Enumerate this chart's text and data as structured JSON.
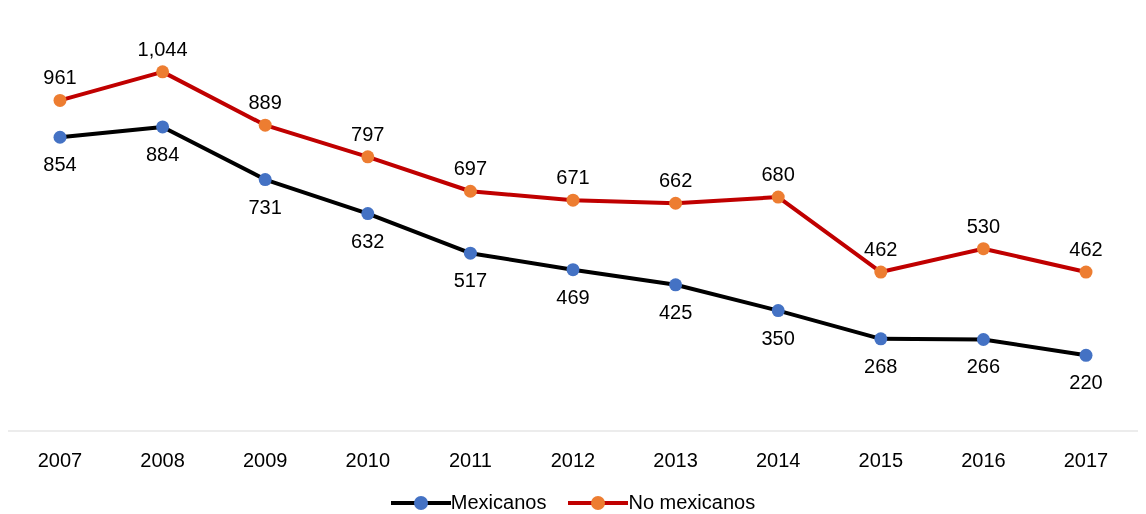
{
  "chart_data": {
    "type": "line",
    "categories": [
      "2007",
      "2008",
      "2009",
      "2010",
      "2011",
      "2012",
      "2013",
      "2014",
      "2015",
      "2016",
      "2017"
    ],
    "series": [
      {
        "name": "Mexicanos",
        "color": "#000000",
        "colors": [
          "#4472c4",
          "#4472c4",
          "#4472c4",
          "#4472c4",
          "#4472c4",
          "#4472c4",
          "#4472c4",
          "#4472c4",
          "#4472c4",
          "#4472c4",
          "#4472c4"
        ],
        "values": [
          854,
          884,
          731,
          632,
          517,
          469,
          425,
          350,
          268,
          266,
          220
        ],
        "value_labels": [
          "854",
          "884",
          "731",
          "632",
          "517",
          "469",
          "425",
          "350",
          "268",
          "266",
          "220"
        ]
      },
      {
        "name": "No mexicanos",
        "color": "#c00000",
        "colors": [
          "#ed7d31",
          "#ed7d31",
          "#ed7d31",
          "#ed7d31",
          "#ed7d31",
          "#ed7d31",
          "#ed7d31",
          "#ed7d31",
          "#ed7d31",
          "#ed7d31",
          "#ed7d31"
        ],
        "values": [
          961,
          1044,
          889,
          797,
          697,
          671,
          662,
          680,
          462,
          530,
          462
        ],
        "value_labels": [
          "961",
          "1,044",
          "889",
          "797",
          "697",
          "671",
          "662",
          "680",
          "462",
          "530",
          "462"
        ]
      }
    ],
    "tick_labels": "x",
    "grid": false,
    "legend": "bottom",
    "marker": "circle",
    "line_style": "solid"
  }
}
